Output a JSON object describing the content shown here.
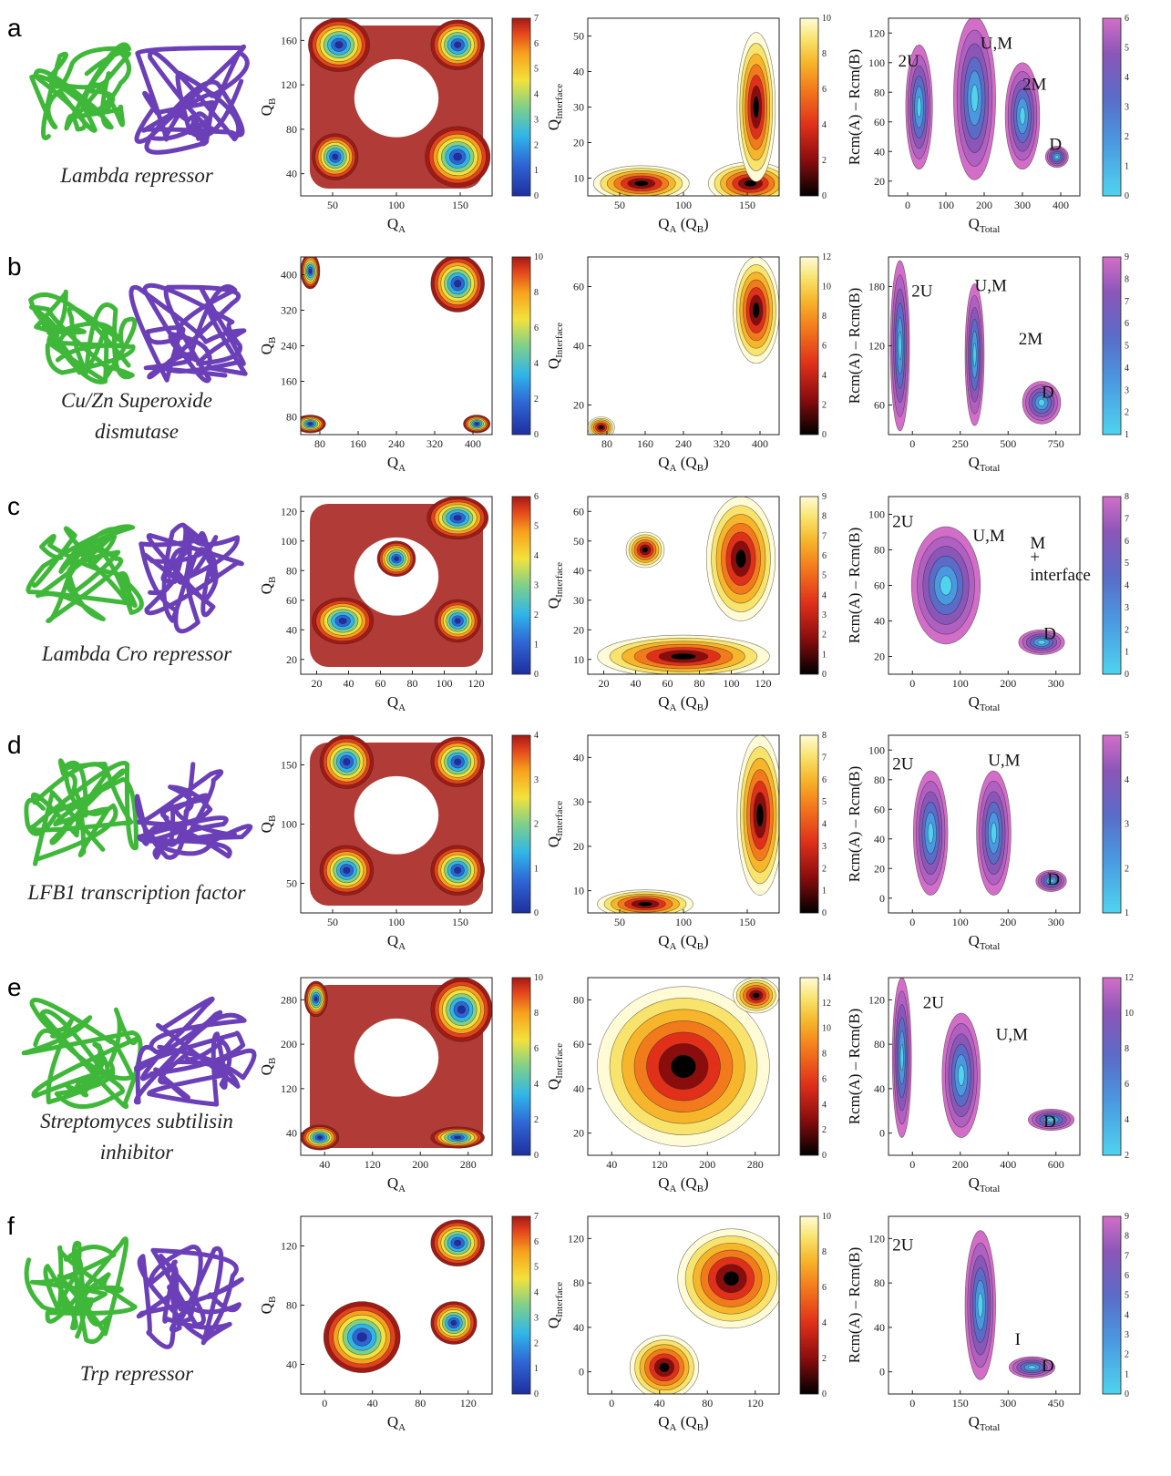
{
  "rows": [
    {
      "letter": "a",
      "protein_name": [
        "Lambda repressor"
      ],
      "p1": {
        "xlabel": "Q",
        "xsub": "A",
        "ylabel": "Q",
        "ysub": "B",
        "xticks": [
          "50",
          "100",
          "150"
        ],
        "yticks": [
          "40",
          "80",
          "120",
          "160"
        ],
        "cb_ticks": [
          "0",
          "1",
          "2",
          "3",
          "4",
          "5",
          "6",
          "7"
        ]
      },
      "p2": {
        "xlabel": "Q",
        "xsub": "A",
        "xtail": " (Q",
        "xsub2": "B",
        "xend": ")",
        "ylabel": "Q",
        "ysub": "Interface",
        "xticks": [
          "50",
          "100",
          "150"
        ],
        "yticks": [
          "10",
          "20",
          "30",
          "40",
          "50"
        ],
        "cb_ticks": [
          "0",
          "2",
          "4",
          "6",
          "8",
          "10"
        ]
      },
      "p3": {
        "xlabel": "Q",
        "xsub": "Total",
        "ylabel": "Rcm(A) – Rcm(B)",
        "xticks": [
          "0",
          "100",
          "200",
          "300",
          "400"
        ],
        "yticks": [
          "20",
          "40",
          "60",
          "80",
          "100",
          "120"
        ],
        "cb_ticks": [
          "0",
          "1",
          "2",
          "3",
          "4",
          "5",
          "6"
        ],
        "annotations": [
          "2U",
          "U,M",
          "2M",
          "D"
        ]
      }
    },
    {
      "letter": "b",
      "protein_name": [
        "Cu/Zn Superoxide",
        "dismutase"
      ],
      "p1": {
        "xlabel": "Q",
        "xsub": "A",
        "ylabel": "Q",
        "ysub": "B",
        "xticks": [
          "80",
          "160",
          "240",
          "320",
          "400"
        ],
        "yticks": [
          "80",
          "160",
          "240",
          "320",
          "400"
        ],
        "cb_ticks": [
          "0",
          "2",
          "4",
          "6",
          "8",
          "10"
        ]
      },
      "p2": {
        "xlabel": "Q",
        "xsub": "A",
        "xtail": " (Q",
        "xsub2": "B",
        "xend": ")",
        "ylabel": "Q",
        "ysub": "Interface",
        "xticks": [
          "80",
          "160",
          "240",
          "320",
          "400"
        ],
        "yticks": [
          "20",
          "40",
          "60"
        ],
        "cb_ticks": [
          "0",
          "2",
          "4",
          "6",
          "8",
          "10",
          "12"
        ]
      },
      "p3": {
        "xlabel": "Q",
        "xsub": "Total",
        "ylabel": "Rcm(A) – Rcm(B)",
        "xticks": [
          "0",
          "250",
          "500",
          "750"
        ],
        "yticks": [
          "60",
          "120",
          "180"
        ],
        "cb_ticks": [
          "1",
          "2",
          "3",
          "4",
          "5",
          "6",
          "7",
          "8",
          "9"
        ],
        "annotations": [
          "2U",
          "U,M",
          "2M",
          "D"
        ]
      }
    },
    {
      "letter": "c",
      "protein_name": [
        "Lambda Cro repressor"
      ],
      "p1": {
        "xlabel": "Q",
        "xsub": "A",
        "ylabel": "Q",
        "ysub": "B",
        "xticks": [
          "20",
          "40",
          "60",
          "80",
          "100",
          "120"
        ],
        "yticks": [
          "20",
          "40",
          "60",
          "80",
          "100",
          "120"
        ],
        "cb_ticks": [
          "0",
          "1",
          "2",
          "3",
          "4",
          "5",
          "6"
        ]
      },
      "p2": {
        "xlabel": "Q",
        "xsub": "A",
        "xtail": " (Q",
        "xsub2": "B",
        "xend": ")",
        "ylabel": "Q",
        "ysub": "Interface",
        "xticks": [
          "20",
          "40",
          "60",
          "80",
          "100",
          "120"
        ],
        "yticks": [
          "10",
          "20",
          "30",
          "40",
          "50",
          "60"
        ],
        "cb_ticks": [
          "0",
          "1",
          "2",
          "3",
          "4",
          "5",
          "6",
          "7",
          "8",
          "9"
        ]
      },
      "p3": {
        "xlabel": "Q",
        "xsub": "Total",
        "ylabel": "Rcm(A) – Rcm(B)",
        "xticks": [
          "0",
          "100",
          "200",
          "300"
        ],
        "yticks": [
          "20",
          "40",
          "60",
          "80",
          "100"
        ],
        "cb_ticks": [
          "0",
          "1",
          "2",
          "3",
          "4",
          "5",
          "6",
          "7",
          "8"
        ],
        "annotations": [
          "2U",
          "U,M",
          "M",
          "+",
          "interface",
          "D"
        ]
      }
    },
    {
      "letter": "d",
      "protein_name": [
        "LFB1 transcription factor"
      ],
      "p1": {
        "xlabel": "Q",
        "xsub": "A",
        "ylabel": "Q",
        "ysub": "B",
        "xticks": [
          "50",
          "100",
          "150"
        ],
        "yticks": [
          "50",
          "100",
          "150"
        ],
        "cb_ticks": [
          "0",
          "1",
          "2",
          "3",
          "4"
        ]
      },
      "p2": {
        "xlabel": "Q",
        "xsub": "A",
        "xtail": " (Q",
        "xsub2": "B",
        "xend": ")",
        "ylabel": "Q",
        "ysub": "Interface",
        "xticks": [
          "50",
          "100",
          "150"
        ],
        "yticks": [
          "10",
          "20",
          "30",
          "40"
        ],
        "cb_ticks": [
          "0",
          "1",
          "2",
          "3",
          "4",
          "5",
          "6",
          "7",
          "8"
        ]
      },
      "p3": {
        "xlabel": "Q",
        "xsub": "Total",
        "ylabel": "Rcm(A) – Rcm(B)",
        "xticks": [
          "0",
          "100",
          "200",
          "300"
        ],
        "yticks": [
          "0",
          "20",
          "40",
          "60",
          "80",
          "100"
        ],
        "cb_ticks": [
          "1",
          "2",
          "3",
          "4",
          "5"
        ],
        "annotations": [
          "2U",
          "U,M",
          "D"
        ]
      }
    },
    {
      "letter": "e",
      "protein_name": [
        "Streptomyces subtilisin",
        "inhibitor"
      ],
      "p1": {
        "xlabel": "Q",
        "xsub": "A",
        "ylabel": "Q",
        "ysub": "B",
        "xticks": [
          "40",
          "120",
          "200",
          "280"
        ],
        "yticks": [
          "40",
          "120",
          "200",
          "280"
        ],
        "cb_ticks": [
          "0",
          "2",
          "4",
          "6",
          "8",
          "10"
        ]
      },
      "p2": {
        "xlabel": "Q",
        "xsub": "A",
        "xtail": " (Q",
        "xsub2": "B",
        "xend": ")",
        "ylabel": "Q",
        "ysub": "Interface",
        "xticks": [
          "40",
          "120",
          "200",
          "280"
        ],
        "yticks": [
          "20",
          "40",
          "60",
          "80"
        ],
        "cb_ticks": [
          "0",
          "2",
          "4",
          "6",
          "8",
          "10",
          "12",
          "14"
        ]
      },
      "p3": {
        "xlabel": "Q",
        "xsub": "Total",
        "ylabel": "Rcm(A) – Rcm(B)",
        "xticks": [
          "0",
          "200",
          "400",
          "600"
        ],
        "yticks": [
          "0",
          "40",
          "80",
          "120"
        ],
        "cb_ticks": [
          "2",
          "4",
          "6",
          "8",
          "10",
          "12"
        ],
        "annotations": [
          "2U",
          "U,M",
          "D"
        ]
      }
    },
    {
      "letter": "f",
      "protein_name": [
        "Trp repressor"
      ],
      "p1": {
        "xlabel": "Q",
        "xsub": "A",
        "ylabel": "Q",
        "ysub": "B",
        "xticks": [
          "0",
          "40",
          "80",
          "120"
        ],
        "yticks": [
          "40",
          "80",
          "120"
        ],
        "cb_ticks": [
          "0",
          "1",
          "2",
          "3",
          "4",
          "5",
          "6",
          "7"
        ]
      },
      "p2": {
        "xlabel": "Q",
        "xsub": "A",
        "xtail": " (Q",
        "xsub2": "B",
        "xend": ")",
        "ylabel": "Q",
        "ysub": "Interface",
        "xticks": [
          "0",
          "40",
          "80",
          "120"
        ],
        "yticks": [
          "0",
          "40",
          "80",
          "120"
        ],
        "cb_ticks": [
          "0",
          "2",
          "4",
          "6",
          "8",
          "10"
        ]
      },
      "p3": {
        "xlabel": "Q",
        "xsub": "Total",
        "ylabel": "Rcm(A) – Rcm(B)",
        "xticks": [
          "0",
          "150",
          "300",
          "450"
        ],
        "yticks": [
          "0",
          "40",
          "80",
          "120"
        ],
        "cb_ticks": [
          "0",
          "1",
          "2",
          "3",
          "4",
          "5",
          "6",
          "7",
          "8",
          "9"
        ],
        "annotations": [
          "2U",
          "I",
          "D"
        ]
      }
    }
  ],
  "colors": {
    "chain_A": "#3fb83a",
    "chain_B": "#6a3fb8",
    "jet": [
      "#1f2f9e",
      "#2f66d6",
      "#2fb6e8",
      "#7fd08a",
      "#f2e23c",
      "#f7a21c",
      "#e2421c",
      "#a31a14"
    ],
    "hot": [
      "#000000",
      "#8a0d0d",
      "#e0301a",
      "#f37a1c",
      "#f6b52a",
      "#f8e36c",
      "#fffbd6"
    ],
    "cool": [
      "#4fd3ef",
      "#4a99e0",
      "#5a6cc8",
      "#8a56b8",
      "#b060c0",
      "#d26ec8"
    ]
  }
}
